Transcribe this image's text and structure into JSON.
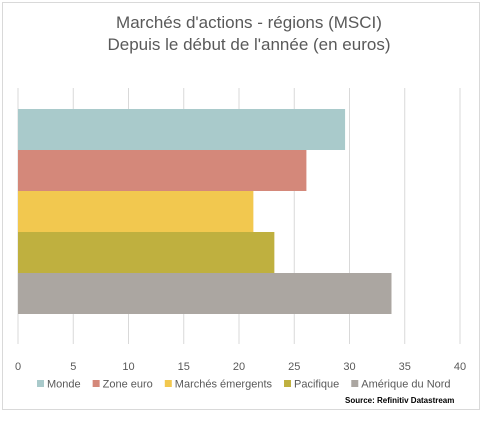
{
  "chart_data": {
    "type": "bar",
    "orientation": "horizontal",
    "title": "Marchés d'actions - régions (MSCI)",
    "subtitle": "Depuis le début de l'année (en euros)",
    "series": [
      {
        "name": "Monde",
        "value": 29.6,
        "color": "#a9cacb"
      },
      {
        "name": "Zone euro",
        "value": 26.1,
        "color": "#d4887a"
      },
      {
        "name": "Marchés émergents",
        "value": 21.3,
        "color": "#f2c84f"
      },
      {
        "name": "Pacifique",
        "value": 23.2,
        "color": "#bfb03f"
      },
      {
        "name": "Amérique du Nord",
        "value": 33.8,
        "color": "#aba6a1"
      }
    ],
    "xlim": [
      0,
      40
    ],
    "x_ticks": [
      "0",
      "5",
      "10",
      "15",
      "20",
      "25",
      "30",
      "35",
      "40"
    ],
    "grid": "vertical",
    "legend_position": "bottom"
  },
  "source": "Source: Refinitiv Datastream"
}
